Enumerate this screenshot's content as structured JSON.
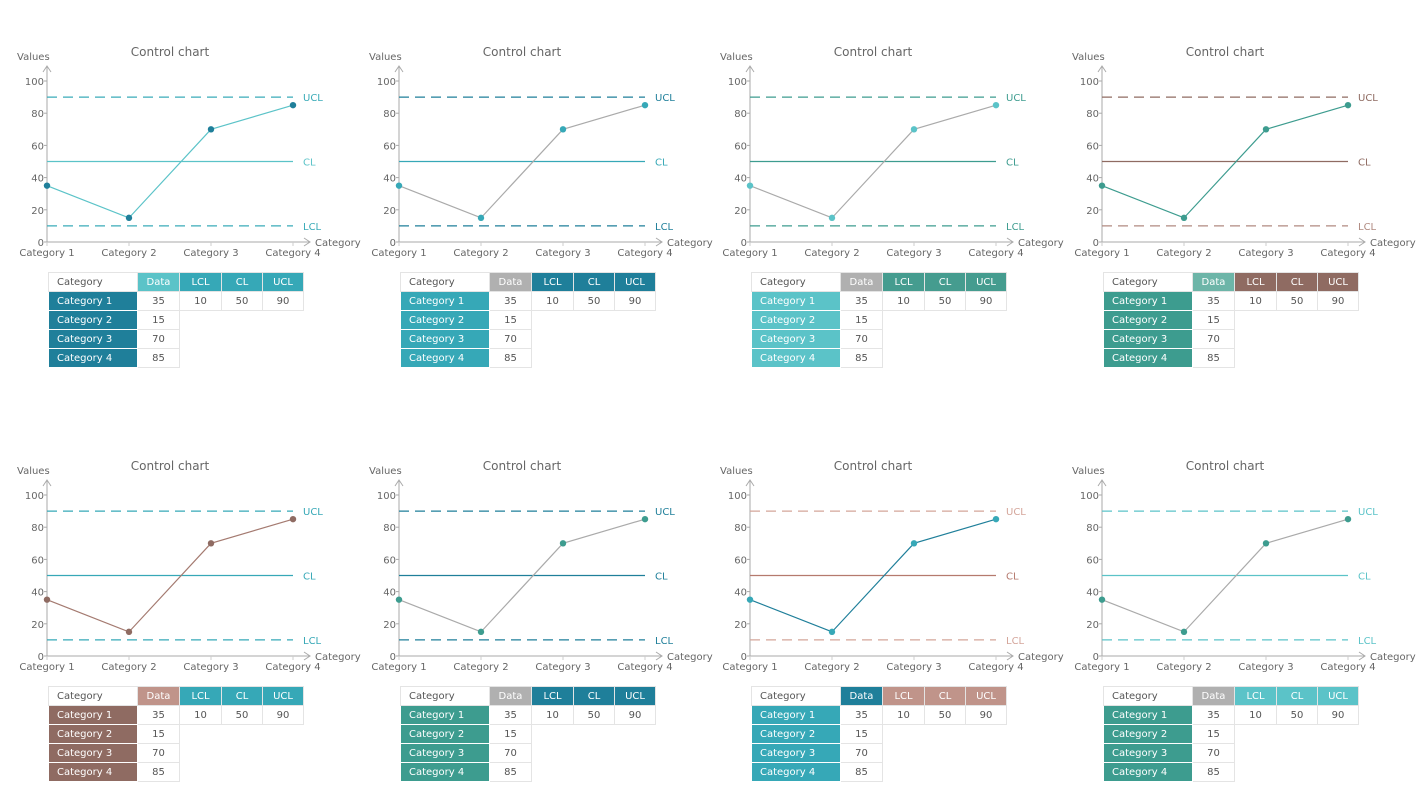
{
  "chart_data": [
    {
      "type": "line",
      "title": "Control chart",
      "ylabel": "Values",
      "xlabel": "Category",
      "ylim": [
        0,
        100
      ],
      "yticks": [
        0,
        20,
        40,
        60,
        80,
        100
      ],
      "categories": [
        "Category 1",
        "Category 2",
        "Category 3",
        "Category 4"
      ],
      "values": [
        35,
        15,
        70,
        85
      ],
      "lcl": 10,
      "cl": 50,
      "ucl": 90,
      "limit_labels": [
        "UCL",
        "CL",
        "LCL"
      ],
      "table_headers": [
        "Category",
        "Data",
        "LCL",
        "CL",
        "UCL"
      ],
      "colors": {
        "line": "#5bc3c8",
        "point": "#1f7f9a",
        "ucl": "#3aabb8",
        "cl": "#5bc3c8",
        "lcl": "#3aabb8",
        "cat_col": "#1f7f9a",
        "data_hdr": "#5bc3c8",
        "limit_hdr": "#36a8b7"
      }
    },
    {
      "type": "line",
      "title": "Control chart",
      "ylabel": "Values",
      "xlabel": "Category",
      "ylim": [
        0,
        100
      ],
      "yticks": [
        0,
        20,
        40,
        60,
        80,
        100
      ],
      "categories": [
        "Category 1",
        "Category 2",
        "Category 3",
        "Category 4"
      ],
      "values": [
        35,
        15,
        70,
        85
      ],
      "lcl": 10,
      "cl": 50,
      "ucl": 90,
      "limit_labels": [
        "UCL",
        "CL",
        "LCL"
      ],
      "table_headers": [
        "Category",
        "Data",
        "LCL",
        "CL",
        "UCL"
      ],
      "colors": {
        "line": "#aaaaaa",
        "point": "#36a8b7",
        "ucl": "#1f7f9a",
        "cl": "#36a8b7",
        "lcl": "#1f7f9a",
        "cat_col": "#36a8b7",
        "data_hdr": "#b0b0b0",
        "limit_hdr": "#1f7f9a"
      }
    },
    {
      "type": "line",
      "title": "Control chart",
      "ylabel": "Values",
      "xlabel": "Category",
      "ylim": [
        0,
        100
      ],
      "yticks": [
        0,
        20,
        40,
        60,
        80,
        100
      ],
      "categories": [
        "Category 1",
        "Category 2",
        "Category 3",
        "Category 4"
      ],
      "values": [
        35,
        15,
        70,
        85
      ],
      "lcl": 10,
      "cl": 50,
      "ucl": 90,
      "limit_labels": [
        "UCL",
        "CL",
        "LCL"
      ],
      "table_headers": [
        "Category",
        "Data",
        "LCL",
        "CL",
        "UCL"
      ],
      "colors": {
        "line": "#aaaaaa",
        "point": "#5bc3c8",
        "ucl": "#3d9c8f",
        "cl": "#3d9c8f",
        "lcl": "#3d9c8f",
        "cat_col": "#5bc3c8",
        "data_hdr": "#b0b0b0",
        "limit_hdr": "#459c8f"
      }
    },
    {
      "type": "line",
      "title": "Control chart",
      "ylabel": "Values",
      "xlabel": "Category",
      "ylim": [
        0,
        100
      ],
      "yticks": [
        0,
        20,
        40,
        60,
        80,
        100
      ],
      "categories": [
        "Category 1",
        "Category 2",
        "Category 3",
        "Category 4"
      ],
      "values": [
        35,
        15,
        70,
        85
      ],
      "lcl": 10,
      "cl": 50,
      "ucl": 90,
      "limit_labels": [
        "UCL",
        "CL",
        "LCL"
      ],
      "table_headers": [
        "Category",
        "Data",
        "LCL",
        "CL",
        "UCL"
      ],
      "colors": {
        "line": "#3d9c8f",
        "point": "#3d9c8f",
        "ucl": "#8f6b62",
        "cl": "#8f6b62",
        "lcl": "#b08a80",
        "cat_col": "#3d9c8f",
        "data_hdr": "#6db5a8",
        "limit_hdr": "#8f6b62"
      }
    },
    {
      "type": "line",
      "title": "Control chart",
      "ylabel": "Values",
      "xlabel": "Category",
      "ylim": [
        0,
        100
      ],
      "yticks": [
        0,
        20,
        40,
        60,
        80,
        100
      ],
      "categories": [
        "Category 1",
        "Category 2",
        "Category 3",
        "Category 4"
      ],
      "values": [
        35,
        15,
        70,
        85
      ],
      "lcl": 10,
      "cl": 50,
      "ucl": 90,
      "limit_labels": [
        "UCL",
        "CL",
        "LCL"
      ],
      "table_headers": [
        "Category",
        "Data",
        "LCL",
        "CL",
        "UCL"
      ],
      "colors": {
        "line": "#a47a70",
        "point": "#8f6b62",
        "ucl": "#36a8b7",
        "cl": "#36a8b7",
        "lcl": "#36a8b7",
        "cat_col": "#8f6b62",
        "data_hdr": "#c0948a",
        "limit_hdr": "#36a8b7"
      }
    },
    {
      "type": "line",
      "title": "Control chart",
      "ylabel": "Values",
      "xlabel": "Category",
      "ylim": [
        0,
        100
      ],
      "yticks": [
        0,
        20,
        40,
        60,
        80,
        100
      ],
      "categories": [
        "Category 1",
        "Category 2",
        "Category 3",
        "Category 4"
      ],
      "values": [
        35,
        15,
        70,
        85
      ],
      "lcl": 10,
      "cl": 50,
      "ucl": 90,
      "limit_labels": [
        "UCL",
        "CL",
        "LCL"
      ],
      "table_headers": [
        "Category",
        "Data",
        "LCL",
        "CL",
        "UCL"
      ],
      "colors": {
        "line": "#aaaaaa",
        "point": "#3d9c8f",
        "ucl": "#1f7f9a",
        "cl": "#1f7f9a",
        "lcl": "#1f7f9a",
        "cat_col": "#3d9c8f",
        "data_hdr": "#b0b0b0",
        "limit_hdr": "#1f7f9a"
      }
    },
    {
      "type": "line",
      "title": "Control chart",
      "ylabel": "Values",
      "xlabel": "Category",
      "ylim": [
        0,
        100
      ],
      "yticks": [
        0,
        20,
        40,
        60,
        80,
        100
      ],
      "categories": [
        "Category 1",
        "Category 2",
        "Category 3",
        "Category 4"
      ],
      "values": [
        35,
        15,
        70,
        85
      ],
      "lcl": 10,
      "cl": 50,
      "ucl": 90,
      "limit_labels": [
        "UCL",
        "CL",
        "LCL"
      ],
      "table_headers": [
        "Category",
        "Data",
        "LCL",
        "CL",
        "UCL"
      ],
      "colors": {
        "line": "#1f7f9a",
        "point": "#36a8b7",
        "ucl": "#d4a59a",
        "cl": "#b57a6e",
        "lcl": "#d4a59a",
        "cat_col": "#36a8b7",
        "data_hdr": "#1f7f9a",
        "limit_hdr": "#c0948a"
      }
    },
    {
      "type": "line",
      "title": "Control chart",
      "ylabel": "Values",
      "xlabel": "Category",
      "ylim": [
        0,
        100
      ],
      "yticks": [
        0,
        20,
        40,
        60,
        80,
        100
      ],
      "categories": [
        "Category 1",
        "Category 2",
        "Category 3",
        "Category 4"
      ],
      "values": [
        35,
        15,
        70,
        85
      ],
      "lcl": 10,
      "cl": 50,
      "ucl": 90,
      "limit_labels": [
        "UCL",
        "CL",
        "LCL"
      ],
      "table_headers": [
        "Category",
        "Data",
        "LCL",
        "CL",
        "UCL"
      ],
      "colors": {
        "line": "#aaaaaa",
        "point": "#3d9c8f",
        "ucl": "#5bc3c8",
        "cl": "#5bc3c8",
        "lcl": "#5bc3c8",
        "cat_col": "#3d9c8f",
        "data_hdr": "#b0b0b0",
        "limit_hdr": "#5bc3c8"
      }
    }
  ]
}
